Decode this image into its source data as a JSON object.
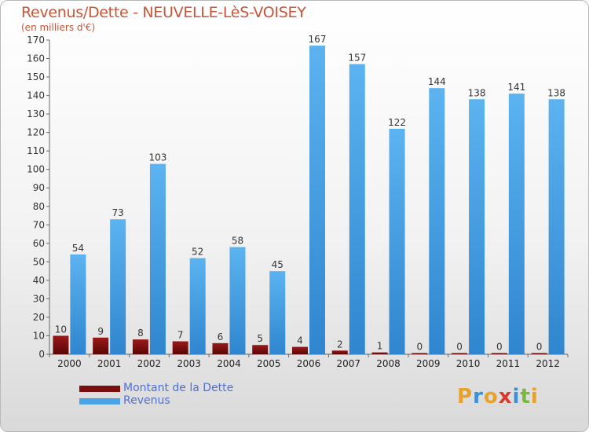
{
  "title": "Revenus/Dette - NEUVELLE-LèS-VOISEY",
  "subtitle": "(en milliers d'€)",
  "logo": {
    "text": "Proxiti",
    "letters": [
      {
        "ch": "P",
        "color": "#e8a12a"
      },
      {
        "ch": "r",
        "color": "#3d8fd6"
      },
      {
        "ch": "o",
        "color": "#e8a12a"
      },
      {
        "ch": "x",
        "color": "#d63b2f"
      },
      {
        "ch": "i",
        "color": "#3d8fd6"
      },
      {
        "ch": "t",
        "color": "#78b83a"
      },
      {
        "ch": "i",
        "color": "#e8a12a"
      }
    ]
  },
  "chart_data": {
    "type": "bar",
    "categories": [
      "2000",
      "2001",
      "2002",
      "2003",
      "2004",
      "2005",
      "2006",
      "2007",
      "2008",
      "2009",
      "2010",
      "2011",
      "2012"
    ],
    "series": [
      {
        "name": "Montant de la Dette",
        "color": "#7a0d0d",
        "values": [
          10,
          9,
          8,
          7,
          6,
          5,
          4,
          2,
          1,
          0,
          0,
          0,
          0
        ]
      },
      {
        "name": "Revenus",
        "color": "#4aa3e6",
        "values": [
          54,
          73,
          103,
          52,
          58,
          45,
          167,
          157,
          122,
          144,
          138,
          141,
          138
        ]
      }
    ],
    "ylim": [
      0,
      170
    ],
    "yticks": [
      0,
      10,
      20,
      30,
      40,
      50,
      60,
      70,
      80,
      90,
      100,
      110,
      120,
      130,
      140,
      150,
      160,
      170
    ],
    "grid": false,
    "legend": "bottom-left"
  }
}
